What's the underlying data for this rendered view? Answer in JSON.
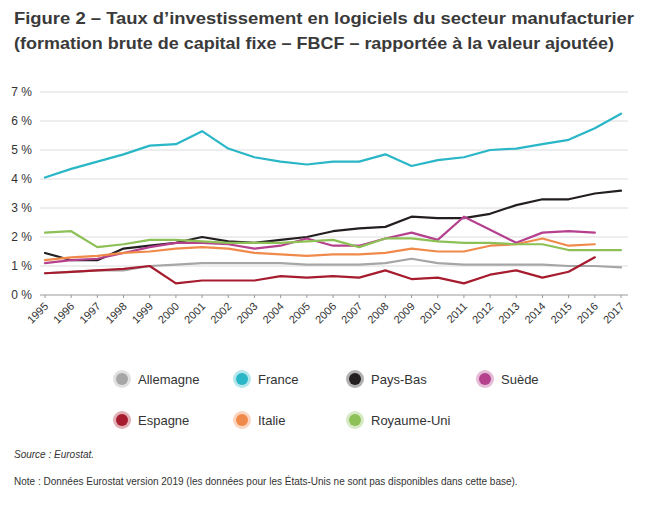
{
  "chart_data": {
    "type": "line",
    "title": "Figure 2 – Taux d’investissement en logiciels du secteur manufacturier",
    "subtitle": "(formation brute de capital fixe – FBCF – rapportée à la valeur ajoutée)",
    "annotations": [
      "Source : Eurostat.",
      "Note : Données Eurostat version 2019 (les données pour les États-Unis ne sont pas disponibles dans cette base)."
    ],
    "categories": [
      "1995",
      "1996",
      "1997",
      "1998",
      "1999",
      "2000",
      "2001",
      "2002",
      "2003",
      "2004",
      "2005",
      "2006",
      "2007",
      "2008",
      "2009",
      "2010",
      "2011",
      "2012",
      "2013",
      "2014",
      "2015",
      "2016",
      "2017"
    ],
    "ylim": [
      0,
      7
    ],
    "yticks": [
      {
        "value": 0,
        "label": "0 %"
      },
      {
        "value": 1,
        "label": "1 %"
      },
      {
        "value": 2,
        "label": "2 %"
      },
      {
        "value": 3,
        "label": "3 %"
      },
      {
        "value": 4,
        "label": "4 %"
      },
      {
        "value": 5,
        "label": "5 %"
      },
      {
        "value": 6,
        "label": "6 %"
      },
      {
        "value": 7,
        "label": "7 %"
      }
    ],
    "grid": true,
    "legend": "bottom",
    "series": [
      {
        "name": "Allemagne",
        "color": "#a6a6a6",
        "values": [
          0.75,
          0.8,
          0.85,
          0.85,
          1.0,
          1.05,
          1.1,
          1.1,
          1.1,
          1.1,
          1.05,
          1.05,
          1.05,
          1.1,
          1.25,
          1.1,
          1.05,
          1.05,
          1.05,
          1.05,
          1.0,
          1.0,
          0.95
        ]
      },
      {
        "name": "France",
        "color": "#29b6c6",
        "values": [
          4.05,
          4.35,
          4.6,
          4.85,
          5.15,
          5.2,
          5.65,
          5.05,
          4.75,
          4.6,
          4.5,
          4.6,
          4.6,
          4.85,
          4.45,
          4.65,
          4.75,
          5.0,
          5.05,
          5.2,
          5.35,
          5.75,
          6.25
        ]
      },
      {
        "name": "Pays-Bas",
        "color": "#231f20",
        "values": [
          1.45,
          1.2,
          1.2,
          1.6,
          1.7,
          1.8,
          2.0,
          1.85,
          1.8,
          1.9,
          2.0,
          2.2,
          2.3,
          2.35,
          2.7,
          2.65,
          2.65,
          2.8,
          3.1,
          3.3,
          3.3,
          3.5,
          3.6
        ]
      },
      {
        "name": "Suède",
        "color": "#b5408e",
        "values": [
          1.1,
          1.2,
          1.25,
          1.45,
          1.65,
          1.8,
          1.8,
          1.75,
          1.6,
          1.7,
          1.95,
          1.7,
          1.7,
          1.95,
          2.15,
          1.9,
          2.7,
          2.25,
          1.8,
          2.15,
          2.2,
          2.15,
          null
        ]
      },
      {
        "name": "Espagne",
        "color": "#a61c2e",
        "values": [
          0.75,
          0.8,
          0.85,
          0.9,
          1.0,
          0.4,
          0.5,
          0.5,
          0.5,
          0.65,
          0.6,
          0.65,
          0.6,
          0.85,
          0.55,
          0.6,
          0.4,
          0.7,
          0.85,
          0.6,
          0.8,
          1.3,
          null
        ]
      },
      {
        "name": "Italie",
        "color": "#f08a4b",
        "values": [
          1.2,
          1.3,
          1.35,
          1.45,
          1.5,
          1.6,
          1.65,
          1.6,
          1.45,
          1.4,
          1.35,
          1.4,
          1.4,
          1.45,
          1.6,
          1.5,
          1.5,
          1.7,
          1.75,
          1.95,
          1.7,
          1.75,
          null
        ]
      },
      {
        "name": "Royaume-Uni",
        "color": "#8dc056",
        "values": [
          2.15,
          2.2,
          1.65,
          1.75,
          1.9,
          1.9,
          1.85,
          1.8,
          1.8,
          1.8,
          1.85,
          1.9,
          1.65,
          1.95,
          1.95,
          1.85,
          1.8,
          1.8,
          1.75,
          1.75,
          1.55,
          1.55,
          1.55
        ]
      }
    ]
  }
}
